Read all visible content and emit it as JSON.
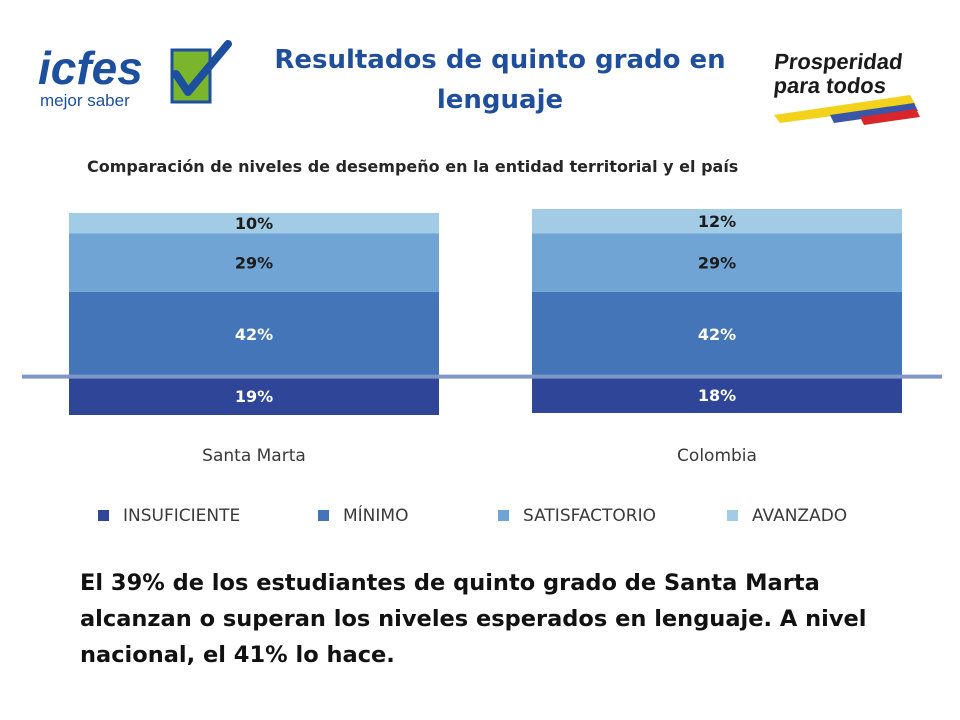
{
  "header": {
    "title": "Resultados de quinto grado en lenguaje",
    "logo_left": {
      "brand": "icfes",
      "tagline": "mejor saber"
    },
    "logo_right": {
      "line1": "Prosperidad",
      "line2": "para todos"
    }
  },
  "chart_data": {
    "type": "bar",
    "stacked": true,
    "orientation": "vertical",
    "title": "Comparación de niveles de desempeño en la entidad territorial y el país",
    "categories": [
      "Santa Marta",
      "Colombia"
    ],
    "series": [
      {
        "name": "INSUFICIENTE",
        "values": [
          19,
          18
        ],
        "labels": [
          "19%",
          "18%"
        ],
        "color": "#2e4598"
      },
      {
        "name": "MÍNIMO",
        "values": [
          42,
          42
        ],
        "labels": [
          "42%",
          "42%"
        ],
        "color": "#4375b8"
      },
      {
        "name": "SATISFACTORIO",
        "values": [
          29,
          29
        ],
        "labels": [
          "29%",
          "29%"
        ],
        "color": "#6fa4d5"
      },
      {
        "name": "AVANZADO",
        "values": [
          10,
          12
        ],
        "labels": [
          "10%",
          "12%"
        ],
        "color": "#a2cbe5"
      }
    ],
    "legend_position": "bottom",
    "grid": false,
    "reference_line": "baseline between INSUFICIENTE and MÍNIMO",
    "reference_line_color": "#7f96c8"
  },
  "footer": {
    "text": "El 39% de los estudiantes de quinto grado de Santa Marta alcanzan o superan los niveles esperados en lenguaje. A nivel nacional, el 41% lo hace."
  },
  "colors": {
    "title": "#1f4e9c",
    "icfes_blue": "#1d4f9f",
    "icfes_green": "#7ab52b"
  }
}
